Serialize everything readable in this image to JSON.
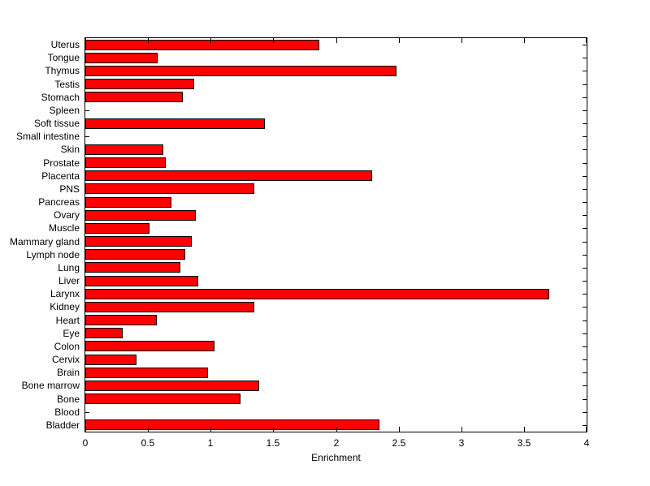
{
  "chart_data": {
    "type": "bar",
    "orientation": "horizontal",
    "title": "",
    "xlabel": "Enrichment",
    "ylabel": "",
    "xlim": [
      0,
      4
    ],
    "xticks": [
      0,
      0.5,
      1,
      1.5,
      2,
      2.5,
      3,
      3.5,
      4
    ],
    "xtick_labels": [
      "0",
      "0.5",
      "1",
      "1.5",
      "2",
      "2.5",
      "3",
      "3.5",
      "4"
    ],
    "grid": false,
    "legend": null,
    "category_order": "top-to-bottom",
    "categories": [
      "Uterus",
      "Tongue",
      "Thymus",
      "Testis",
      "Stomach",
      "Spleen",
      "Soft tissue",
      "Small intestine",
      "Skin",
      "Prostate",
      "Placenta",
      "PNS",
      "Pancreas",
      "Ovary",
      "Muscle",
      "Mammary gland",
      "Lymph node",
      "Lung",
      "Liver",
      "Larynx",
      "Kidney",
      "Heart",
      "Eye",
      "Colon",
      "Cervix",
      "Brain",
      "Bone marrow",
      "Bone",
      "Blood",
      "Bladder"
    ],
    "values": [
      1.87,
      0.58,
      2.48,
      0.87,
      0.78,
      0,
      1.43,
      0,
      0.62,
      0.64,
      2.29,
      1.35,
      0.69,
      0.88,
      0.51,
      0.85,
      0.8,
      0.76,
      0.9,
      3.7,
      1.35,
      0.57,
      0.3,
      1.03,
      0.41,
      0.98,
      1.39,
      1.24,
      0,
      2.35
    ],
    "bar_color": "#FF0000",
    "bar_edge_color": "#000000",
    "axis_color": "#000000",
    "background_color": "#FFFFFF"
  }
}
